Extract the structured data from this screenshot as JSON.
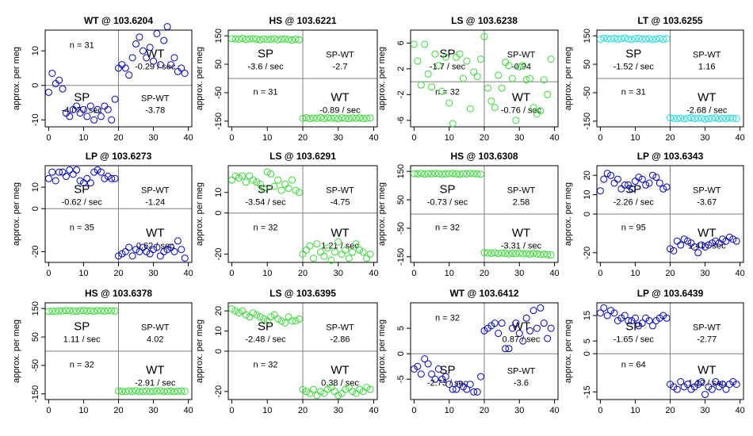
{
  "figure": {
    "ylabel": "approx. per meg",
    "x_ticks": [
      0,
      10,
      20,
      30,
      40
    ],
    "split_x": 20,
    "label_sp": "SP",
    "label_wt": "WT",
    "label_spwt": "SP-WT"
  },
  "colors": {
    "blue": "#0000cc",
    "green": "#33dd33",
    "cyan": "#22dddd",
    "axis": "#000000",
    "divider": "#7f7f7f"
  },
  "chart_data": [
    {
      "type": "scatter",
      "title": "WT @ 103.6204",
      "color": "blue",
      "layout": "low-high",
      "ylim": [
        -12,
        16
      ],
      "yticks": [
        -10,
        0,
        10
      ],
      "n_label": "n = 31",
      "sp_rate": "-4.07 / sec",
      "wt_rate": "-0.29 / sec",
      "spwt": "-3.78",
      "x": [
        0,
        1,
        2,
        3,
        4,
        5,
        6,
        7,
        8,
        9,
        10,
        11,
        12,
        13,
        14,
        15,
        16,
        17,
        18,
        19,
        20,
        21,
        22,
        23,
        24,
        25,
        26,
        27,
        28,
        29,
        30,
        31,
        32,
        33,
        34,
        35,
        36,
        37,
        38,
        39
      ],
      "y": [
        -2,
        3.5,
        0.5,
        1.5,
        -1,
        -8,
        -9,
        -7,
        -6,
        -8,
        -7,
        -9,
        -6,
        -10,
        -7,
        -9,
        -6,
        -7,
        -10,
        -4,
        5,
        6,
        5,
        3,
        8,
        12,
        14,
        10,
        8,
        11,
        7,
        15,
        6,
        13,
        17,
        6,
        8,
        4,
        5,
        3.5
      ]
    },
    {
      "type": "scatter",
      "title": "HS @ 103.6221",
      "color": "green",
      "layout": "high-low",
      "ylim": [
        -170,
        170
      ],
      "yticks": [
        -150,
        -50,
        50,
        150
      ],
      "n_label": "n = 31",
      "sp_rate": "-3.6 / sec",
      "wt_rate": "-0.89 / sec",
      "spwt": "-2.7",
      "x": [
        0,
        1,
        2,
        3,
        4,
        5,
        6,
        7,
        8,
        9,
        10,
        11,
        12,
        13,
        14,
        15,
        16,
        17,
        18,
        19,
        20,
        21,
        22,
        23,
        24,
        25,
        26,
        27,
        28,
        29,
        30,
        31,
        32,
        33,
        34,
        35,
        36,
        37,
        38,
        39
      ],
      "y": [
        140,
        139,
        138,
        141,
        137,
        139,
        140,
        138,
        136,
        139,
        137,
        138,
        140,
        136,
        138,
        139,
        137,
        135,
        138,
        136,
        -140,
        -138,
        -141,
        -139,
        -140,
        -137,
        -141,
        -138,
        -140,
        -139,
        -142,
        -138,
        -140,
        -141,
        -139,
        -140,
        -138,
        -141,
        -140,
        -139
      ]
    },
    {
      "type": "scatter",
      "title": "LS @ 103.6238",
      "color": "green",
      "layout": "high-low",
      "ylim": [
        -7,
        8
      ],
      "yticks": [
        -6,
        -2,
        2,
        6
      ],
      "n_label": "n = 32",
      "sp_rate": "-1.7 / sec",
      "wt_rate": "-0.76 / sec",
      "spwt": "-0.94",
      "x": [
        0,
        1,
        2,
        3,
        4,
        5,
        6,
        7,
        8,
        9,
        10,
        11,
        12,
        13,
        14,
        15,
        16,
        17,
        18,
        19,
        20,
        21,
        22,
        23,
        24,
        25,
        26,
        27,
        28,
        29,
        30,
        31,
        32,
        33,
        34,
        35,
        36,
        37,
        38,
        39
      ],
      "y": [
        5.8,
        3.2,
        -0.5,
        5.8,
        1.2,
        -0.8,
        4.3,
        2.5,
        -1.5,
        3.8,
        -3.3,
        -6.5,
        3.8,
        4.3,
        0.5,
        3.2,
        -4.2,
        1.5,
        0.8,
        3.5,
        7,
        -1,
        -3,
        -4,
        1,
        -1,
        3,
        2.5,
        0.5,
        -6,
        2.3,
        2.5,
        0.3,
        0.5,
        -4,
        -5,
        -4.5,
        0.3,
        -2,
        3.5
      ]
    },
    {
      "type": "scatter",
      "title": "LT @ 103.6255",
      "color": "cyan",
      "layout": "high-low",
      "ylim": [
        -170,
        170
      ],
      "yticks": [
        -150,
        -50,
        50,
        150
      ],
      "n_label": "n = 31",
      "sp_rate": "-1.52 / sec",
      "wt_rate": "-2.68 / sec",
      "spwt": "1.16",
      "x": [
        0,
        1,
        2,
        3,
        4,
        5,
        6,
        7,
        8,
        9,
        10,
        11,
        12,
        13,
        14,
        15,
        16,
        17,
        18,
        19,
        20,
        21,
        22,
        23,
        24,
        25,
        26,
        27,
        28,
        29,
        30,
        31,
        32,
        33,
        34,
        35,
        36,
        37,
        38,
        39
      ],
      "y": [
        138,
        142,
        140,
        139,
        141,
        138,
        140,
        142,
        139,
        137,
        140,
        141,
        138,
        139,
        140,
        137,
        139,
        141,
        138,
        140,
        -138,
        -140,
        -141,
        -139,
        -142,
        -140,
        -138,
        -141,
        -140,
        -139,
        -143,
        -141,
        -140,
        -138,
        -142,
        -140,
        -141,
        -139,
        -140,
        -141
      ]
    },
    {
      "type": "scatter",
      "title": "LP @ 103.6273",
      "color": "blue",
      "layout": "high-low",
      "ylim": [
        -25,
        20
      ],
      "yticks": [
        -20,
        0,
        10
      ],
      "n_label": "n = 35",
      "sp_rate": "-0.62 / sec",
      "wt_rate": "0.62 / sec",
      "spwt": "-1.24",
      "x": [
        0,
        1,
        2,
        3,
        4,
        5,
        6,
        7,
        8,
        9,
        10,
        11,
        12,
        13,
        14,
        15,
        16,
        17,
        18,
        19,
        20,
        21,
        22,
        23,
        24,
        25,
        26,
        27,
        28,
        29,
        30,
        31,
        32,
        33,
        34,
        35,
        36,
        37,
        38,
        39
      ],
      "y": [
        14,
        17,
        13,
        17,
        17,
        15,
        18,
        16,
        18,
        13,
        12,
        14,
        12,
        17,
        18,
        17,
        14,
        15,
        14,
        14,
        -22,
        -21,
        -20,
        -18,
        -22,
        -19,
        -20,
        -18,
        -20,
        -21,
        -19,
        -18,
        -22,
        -20,
        -19,
        -18,
        -20,
        -15,
        -19,
        -23
      ]
    },
    {
      "type": "scatter",
      "title": "LS @ 103.6291",
      "color": "green",
      "layout": "high-low",
      "ylim": [
        -24,
        23
      ],
      "yticks": [
        -20,
        0,
        10
      ],
      "n_label": "n = 32",
      "sp_rate": "-3.54 / sec",
      "wt_rate": "1.21 / sec",
      "spwt": "-4.75",
      "x": [
        0,
        1,
        2,
        3,
        4,
        5,
        6,
        7,
        8,
        9,
        10,
        11,
        12,
        13,
        14,
        15,
        16,
        17,
        18,
        19,
        20,
        21,
        22,
        23,
        24,
        25,
        26,
        27,
        28,
        29,
        30,
        31,
        32,
        33,
        34,
        35,
        36,
        37,
        38,
        39
      ],
      "y": [
        16,
        18,
        17,
        18,
        15,
        18,
        16,
        15,
        14,
        12,
        20,
        19,
        13,
        16,
        11,
        14,
        12,
        16,
        11,
        10,
        -20,
        -18,
        -16,
        -22,
        -15,
        -19,
        -21,
        -17,
        -23,
        -19,
        -14,
        -20,
        -18,
        -22,
        -19,
        -15,
        -18,
        -19,
        -22,
        -20
      ]
    },
    {
      "type": "scatter",
      "title": "HS @ 103.6308",
      "color": "green",
      "layout": "high-low",
      "ylim": [
        -170,
        170
      ],
      "yticks": [
        -150,
        -50,
        50,
        150
      ],
      "n_label": "n = 32",
      "sp_rate": "-0.73 / sec",
      "wt_rate": "-3.31 / sec",
      "spwt": "2.58",
      "x": [
        0,
        1,
        2,
        3,
        4,
        5,
        6,
        7,
        8,
        9,
        10,
        11,
        12,
        13,
        14,
        15,
        16,
        17,
        18,
        19,
        20,
        21,
        22,
        23,
        24,
        25,
        26,
        27,
        28,
        29,
        30,
        31,
        32,
        33,
        34,
        35,
        36,
        37,
        38,
        39
      ],
      "y": [
        142,
        141,
        143,
        140,
        142,
        141,
        143,
        142,
        140,
        141,
        142,
        143,
        141,
        140,
        142,
        141,
        143,
        142,
        141,
        140,
        -135,
        -137,
        -138,
        -136,
        -139,
        -137,
        -138,
        -140,
        -138,
        -139,
        -137,
        -140,
        -139,
        -141,
        -138,
        -140,
        -142,
        -141,
        -143,
        -144
      ]
    },
    {
      "type": "scatter",
      "title": "LP @ 103.6343",
      "color": "blue",
      "layout": "high-low",
      "ylim": [
        -25,
        25
      ],
      "yticks": [
        -20,
        0,
        10,
        20
      ],
      "n_label": "n = 95",
      "sp_rate": "-2.26 / sec",
      "wt_rate": "1.41 / sec",
      "spwt": "-3.67",
      "x": [
        0,
        1,
        2,
        3,
        4,
        5,
        6,
        7,
        8,
        9,
        10,
        11,
        12,
        13,
        14,
        15,
        16,
        17,
        18,
        19,
        20,
        21,
        22,
        23,
        24,
        25,
        26,
        27,
        28,
        29,
        30,
        31,
        32,
        33,
        34,
        35,
        36,
        37,
        38,
        39
      ],
      "y": [
        12,
        18,
        21,
        20,
        16,
        18,
        13,
        15,
        15,
        13,
        17,
        19,
        18,
        15,
        16,
        20,
        19,
        16,
        13,
        14,
        -18,
        -19,
        -14,
        -16,
        -13,
        -14,
        -15,
        -17,
        -20,
        -16,
        -17,
        -16,
        -15,
        -14,
        -15,
        -13,
        -14,
        -12,
        -13,
        -14
      ]
    },
    {
      "type": "scatter",
      "title": "HS @ 103.6378",
      "color": "green",
      "layout": "high-low",
      "ylim": [
        -170,
        170
      ],
      "yticks": [
        -150,
        -50,
        50,
        150
      ],
      "n_label": "n = 32",
      "sp_rate": "1.11 / sec",
      "wt_rate": "-2.91 / sec",
      "spwt": "4.02",
      "x": [
        0,
        1,
        2,
        3,
        4,
        5,
        6,
        7,
        8,
        9,
        10,
        11,
        12,
        13,
        14,
        15,
        16,
        17,
        18,
        19,
        20,
        21,
        22,
        23,
        24,
        25,
        26,
        27,
        28,
        29,
        30,
        31,
        32,
        33,
        34,
        35,
        36,
        37,
        38,
        39
      ],
      "y": [
        140,
        141,
        140,
        142,
        141,
        143,
        142,
        141,
        140,
        142,
        143,
        141,
        142,
        140,
        143,
        142,
        141,
        143,
        142,
        141,
        -140,
        -141,
        -142,
        -140,
        -141,
        -139,
        -142,
        -141,
        -140,
        -142,
        -141,
        -140,
        -139,
        -142,
        -141,
        -140,
        -142,
        -141,
        -140,
        -141
      ]
    },
    {
      "type": "scatter",
      "title": "LS @ 103.6395",
      "color": "green",
      "layout": "high-low",
      "ylim": [
        -24,
        24
      ],
      "yticks": [
        -20,
        0,
        10,
        20
      ],
      "n_label": "n = 32",
      "sp_rate": "-2.48 / sec",
      "wt_rate": "0.38 / sec",
      "spwt": "-2.86",
      "x": [
        0,
        1,
        2,
        3,
        4,
        5,
        6,
        7,
        8,
        9,
        10,
        11,
        12,
        13,
        14,
        15,
        16,
        17,
        18,
        19,
        20,
        21,
        22,
        23,
        24,
        25,
        26,
        27,
        28,
        29,
        30,
        31,
        32,
        33,
        34,
        35,
        36,
        37,
        38,
        39
      ],
      "y": [
        21,
        20,
        19,
        20,
        18,
        17,
        19,
        18,
        17,
        16,
        15,
        17,
        18,
        16,
        15,
        14,
        17,
        15,
        15,
        16,
        -19,
        -20,
        -21,
        -19,
        -22,
        -20,
        -21,
        -19,
        -18,
        -20,
        -22,
        -21,
        -19,
        -18,
        -20,
        -21,
        -19,
        -20,
        -18,
        -19
      ]
    },
    {
      "type": "scatter",
      "title": "WT @ 103.6412",
      "color": "blue",
      "layout": "low-high",
      "ylim": [
        -9,
        10
      ],
      "yticks": [
        -5,
        0,
        5
      ],
      "n_label": "n = 32",
      "sp_rate": "-2.73 / sec",
      "wt_rate": "0.87 / sec",
      "spwt": "-3.6",
      "x": [
        0,
        1,
        2,
        3,
        4,
        5,
        6,
        7,
        8,
        9,
        10,
        11,
        12,
        13,
        14,
        15,
        16,
        17,
        18,
        19,
        20,
        21,
        22,
        23,
        24,
        25,
        26,
        27,
        28,
        29,
        30,
        31,
        32,
        33,
        34,
        35,
        36,
        37,
        38,
        39
      ],
      "y": [
        -3,
        -2.5,
        -4,
        -1,
        -2,
        -4,
        -5,
        -3,
        -5,
        -4.5,
        -6,
        -7,
        -7,
        -6,
        -6.5,
        -7,
        -6,
        -7.5,
        -7.5,
        -4.5,
        4.5,
        5,
        5.5,
        6,
        4,
        6,
        1,
        1,
        5,
        6,
        4,
        2.5,
        7,
        4.5,
        8.5,
        5,
        9,
        6,
        3,
        5
      ]
    },
    {
      "type": "scatter",
      "title": "LP @ 103.6439",
      "color": "blue",
      "layout": "high-low",
      "ylim": [
        -18,
        20
      ],
      "yticks": [
        -15,
        0,
        5,
        15
      ],
      "n_label": "n = 64",
      "sp_rate": "-1.65 / sec",
      "wt_rate": "1.12 / sec",
      "spwt": "-2.77",
      "x": [
        0,
        1,
        2,
        3,
        4,
        5,
        6,
        7,
        8,
        9,
        10,
        11,
        12,
        13,
        14,
        15,
        16,
        17,
        18,
        19,
        20,
        21,
        22,
        23,
        24,
        25,
        26,
        27,
        28,
        29,
        30,
        31,
        32,
        33,
        34,
        35,
        36,
        37,
        38,
        39
      ],
      "y": [
        16,
        18,
        15,
        17,
        16,
        13,
        14,
        15,
        13,
        13,
        14,
        11,
        12,
        14,
        13,
        11,
        13,
        14,
        15,
        14,
        -12,
        -13,
        -14,
        -11,
        -13,
        -12,
        -14,
        -13,
        -12,
        -11,
        -16,
        -13,
        -14,
        -11,
        -13,
        -12,
        -14,
        -12,
        -11,
        -12
      ]
    }
  ]
}
